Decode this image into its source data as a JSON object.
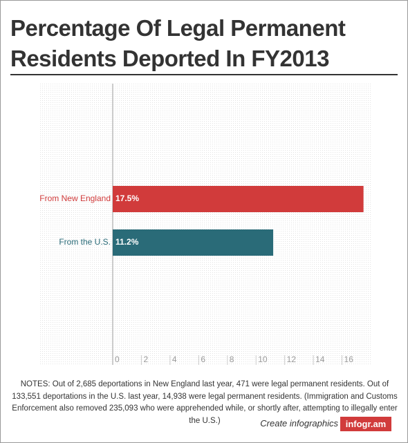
{
  "chart_data": {
    "type": "bar",
    "orientation": "horizontal",
    "title": "Percentage Of Legal Permanent Residents Deported In FY2013",
    "categories": [
      "From New England",
      "From the U.S."
    ],
    "values": [
      17.5,
      11.2
    ],
    "value_labels": [
      "17.5%",
      "11.2%"
    ],
    "colors": [
      "#d13b3b",
      "#2a6b78"
    ],
    "xlim": [
      0,
      18
    ],
    "xticks": [
      0,
      2,
      4,
      6,
      8,
      10,
      12,
      14,
      16
    ],
    "notes": "NOTES: Out of 2,685 deportations in New England last year, 471 were legal permanent residents. Out of 133,551 deportations in the U.S. last year, 14,938 were legal permanent residents. (Immigration and Customs Enforcement also removed 235,093 who were apprehended while, or shortly after, attempting to illegally enter the U.S.)"
  },
  "footer": {
    "text": "Create infographics",
    "brand": "infogr.am"
  }
}
